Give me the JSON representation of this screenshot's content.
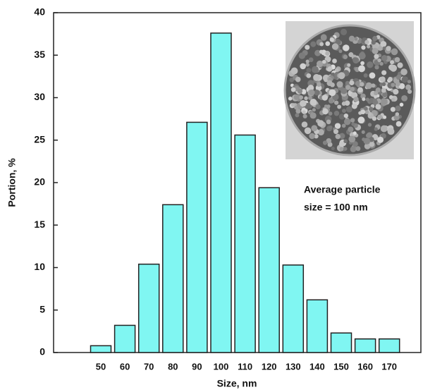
{
  "chart_data": {
    "type": "bar",
    "x_label": "Size, nm",
    "y_label": "Portion, %",
    "categories": [
      "50",
      "60",
      "70",
      "80",
      "90",
      "100",
      "110",
      "120",
      "130",
      "140",
      "150",
      "160",
      "170"
    ],
    "values": [
      0.8,
      3.2,
      10.4,
      17.4,
      27.1,
      37.6,
      25.6,
      19.4,
      10.3,
      6.2,
      2.3,
      1.6,
      1.6
    ],
    "color": "#80f6f2",
    "ylim": [
      0,
      40
    ],
    "yticks": [
      0,
      5,
      10,
      15,
      20,
      25,
      30,
      35,
      40
    ],
    "annotation": [
      "Average particle",
      "size = 100 nm"
    ]
  }
}
